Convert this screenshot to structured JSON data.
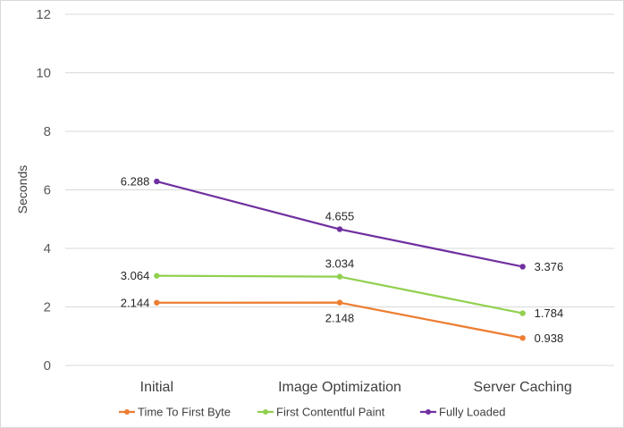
{
  "chart_data": {
    "type": "line",
    "title": "",
    "xlabel": "",
    "ylabel": "Seconds",
    "categories": [
      "Initial",
      "Image Optimization",
      "Server Caching"
    ],
    "ylim": [
      0,
      12
    ],
    "y_ticks": [
      0,
      2,
      4,
      6,
      8,
      10,
      12
    ],
    "grid": "horizontal",
    "legend_position": "bottom",
    "series": [
      {
        "name": "Time To First Byte",
        "color": "#ed7d31",
        "values": [
          2.144,
          2.148,
          0.938
        ],
        "labels": [
          "2.144",
          "2.148",
          "0.938"
        ],
        "label_sides": [
          "left",
          "below",
          "right"
        ]
      },
      {
        "name": "First Contentful Paint",
        "color": "#92d050",
        "values": [
          3.064,
          3.034,
          1.784
        ],
        "labels": [
          "3.064",
          "3.034",
          "1.784"
        ],
        "label_sides": [
          "left",
          "above",
          "right"
        ]
      },
      {
        "name": "Fully Loaded",
        "color": "#7030a0",
        "values": [
          6.288,
          4.655,
          3.376
        ],
        "labels": [
          "6.288",
          "4.655",
          "3.376"
        ],
        "label_sides": [
          "left",
          "above",
          "right"
        ]
      }
    ]
  }
}
